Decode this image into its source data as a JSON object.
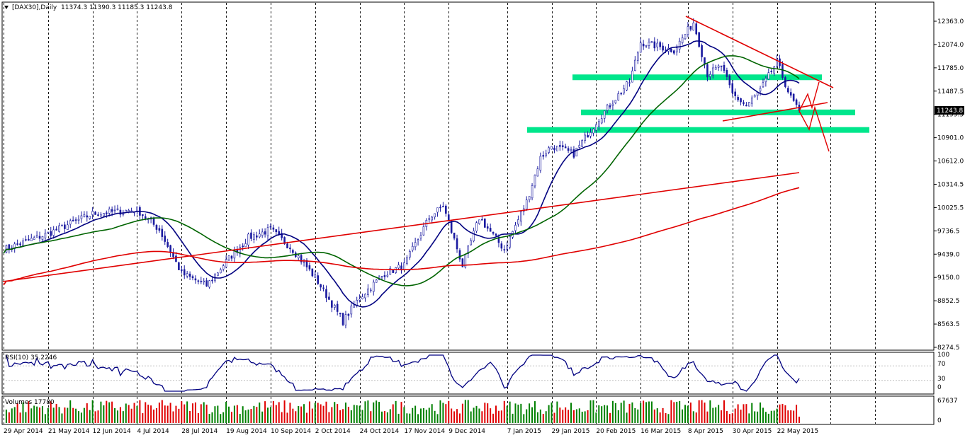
{
  "header": {
    "symbol": "[DAX30],Daily",
    "ohlc": "11374.3 11390.3 11185.3 11243.8",
    "triangle_icon": "dropdown-triangle-icon"
  },
  "price_panel": {
    "current_price_label": "11243.8",
    "y_ticks": [
      "12363.0",
      "12074.0",
      "11785.0",
      "11487.5",
      "11199.5",
      "10901.0",
      "10612.0",
      "10314.5",
      "10025.5",
      "9736.5",
      "9439.0",
      "9150.0",
      "8852.5",
      "8563.5",
      "8274.5"
    ]
  },
  "rsi_panel": {
    "label": "RSI(10) 35.2246",
    "y_ticks": [
      "100",
      "70",
      "30",
      "0"
    ]
  },
  "volume_panel": {
    "label": "Volumes 17780",
    "y_ticks": [
      "67637",
      "0"
    ]
  },
  "x_labels": [
    "29 Apr 2014",
    "21 May 2014",
    "12 Jun 2014",
    "4 Jul 2014",
    "28 Jul 2014",
    "19 Aug 2014",
    "10 Sep 2014",
    "2 Oct 2014",
    "24 Oct 2014",
    "17 Nov 2014",
    "9 Dec 2014",
    "7 Jan 2015",
    "29 Jan 2015",
    "20 Feb 2015",
    "16 Mar 2015",
    "8 Apr 2015",
    "30 Apr 2015",
    "22 May 2015"
  ],
  "colors": {
    "candle": "#1a1aa0",
    "ma_fast": "#000080",
    "ma_mid": "#006400",
    "ma_slow": "#e00000",
    "zone": "#00e68c",
    "trend": "#e00000",
    "rsi": "#000080",
    "vol_up": "#008000",
    "vol_down": "#e00000",
    "price_tag_bg": "#000000"
  },
  "chart_data": {
    "type": "candlestick",
    "title": "[DAX30],Daily",
    "x_range": [
      "29 Apr 2014",
      "22 May 2015"
    ],
    "ylim": [
      8274.5,
      12363.0
    ],
    "close_anchors": [
      {
        "date": "29 Apr 2014",
        "close": 9500
      },
      {
        "date": "21 May 2014",
        "close": 9700
      },
      {
        "date": "12 Jun 2014",
        "close": 9950
      },
      {
        "date": "4 Jul 2014",
        "close": 10000
      },
      {
        "date": "16 Jul 2014",
        "close": 9750
      },
      {
        "date": "28 Jul 2014",
        "close": 9200
      },
      {
        "date": "8 Aug 2014",
        "close": 9050
      },
      {
        "date": "19 Aug 2014",
        "close": 9350
      },
      {
        "date": "29 Aug 2014",
        "close": 9650
      },
      {
        "date": "10 Sep 2014",
        "close": 9750
      },
      {
        "date": "22 Sep 2014",
        "close": 9500
      },
      {
        "date": "2 Oct 2014",
        "close": 9150
      },
      {
        "date": "16 Oct 2014",
        "close": 8600
      },
      {
        "date": "24 Oct 2014",
        "close": 8900
      },
      {
        "date": "6 Nov 2014",
        "close": 9200
      },
      {
        "date": "17 Nov 2014",
        "close": 9300
      },
      {
        "date": "28 Nov 2014",
        "close": 9900
      },
      {
        "date": "5 Dec 2014",
        "close": 10050
      },
      {
        "date": "16 Dec 2014",
        "close": 9300
      },
      {
        "date": "24 Dec 2014",
        "close": 9900
      },
      {
        "date": "6 Jan 2015",
        "close": 9500
      },
      {
        "date": "16 Jan 2015",
        "close": 10100
      },
      {
        "date": "23 Jan 2015",
        "close": 10650
      },
      {
        "date": "29 Jan 2015",
        "close": 10800
      },
      {
        "date": "10 Feb 2015",
        "close": 10700
      },
      {
        "date": "20 Feb 2015",
        "close": 11100
      },
      {
        "date": "3 Mar 2015",
        "close": 11400
      },
      {
        "date": "10 Mar 2015",
        "close": 11600
      },
      {
        "date": "16 Mar 2015",
        "close": 12100
      },
      {
        "date": "1 Apr 2015",
        "close": 12000
      },
      {
        "date": "10 Apr 2015",
        "close": 12350
      },
      {
        "date": "17 Apr 2015",
        "close": 11700
      },
      {
        "date": "24 Apr 2015",
        "close": 11800
      },
      {
        "date": "30 Apr 2015",
        "close": 11450
      },
      {
        "date": "7 May 2015",
        "close": 11300
      },
      {
        "date": "14 May 2015",
        "close": 11500
      },
      {
        "date": "22 May 2015",
        "close": 11850
      },
      {
        "date": "29 May 2015",
        "close": 11400
      },
      {
        "date": "3 Jun 2015",
        "close": 11243.8
      }
    ],
    "moving_averages": [
      {
        "name": "fast",
        "period_days": 14
      },
      {
        "name": "mid",
        "period_days": 40
      },
      {
        "name": "slow",
        "period_days": 200
      }
    ],
    "support_resistance_zones": [
      11660,
      11220,
      11000
    ],
    "rsi_last": 35.2246,
    "rsi_levels": [
      70,
      30
    ],
    "volume_last": 17780,
    "volume_max": 67637
  }
}
